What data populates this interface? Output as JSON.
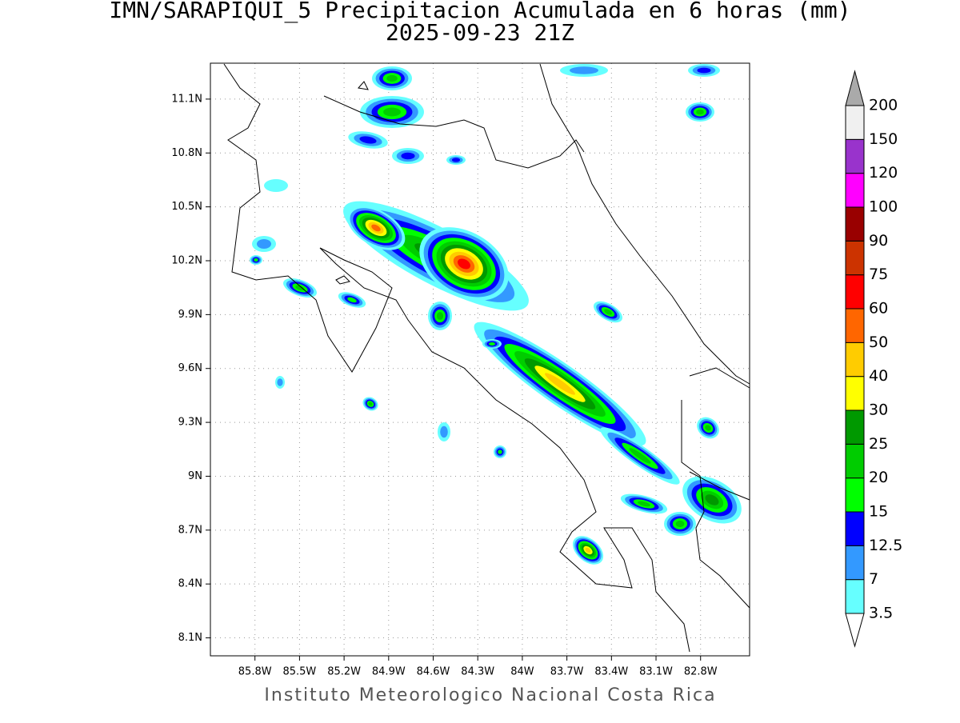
{
  "map": {
    "title": "IMN/SARAPIQUI_5 Precipitacion Acumulada en 6 horas (mm)",
    "subtitle": "2025-09-23 21Z",
    "xlim": [
      -86.1,
      -82.47
    ],
    "ylim": [
      8.0,
      11.3
    ],
    "xticks": [
      {
        "value": -85.8,
        "label": "85.8W"
      },
      {
        "value": -85.5,
        "label": "85.5W"
      },
      {
        "value": -85.2,
        "label": "85.2W"
      },
      {
        "value": -84.9,
        "label": "84.9W"
      },
      {
        "value": -84.6,
        "label": "84.6W"
      },
      {
        "value": -84.3,
        "label": "84.3W"
      },
      {
        "value": -84.0,
        "label": "84W"
      },
      {
        "value": -83.7,
        "label": "83.7W"
      },
      {
        "value": -83.4,
        "label": "83.4W"
      },
      {
        "value": -83.1,
        "label": "83.1W"
      },
      {
        "value": -82.8,
        "label": "82.8W"
      }
    ],
    "yticks": [
      {
        "value": 8.1,
        "label": "8.1N"
      },
      {
        "value": 8.4,
        "label": "8.4N"
      },
      {
        "value": 8.7,
        "label": "8.7N"
      },
      {
        "value": 9.0,
        "label": "9N"
      },
      {
        "value": 9.3,
        "label": "9.3N"
      },
      {
        "value": 9.6,
        "label": "9.6N"
      },
      {
        "value": 9.9,
        "label": "9.9N"
      },
      {
        "value": 10.2,
        "label": "10.2N"
      },
      {
        "value": 10.5,
        "label": "10.5N"
      },
      {
        "value": 10.8,
        "label": "10.8N"
      },
      {
        "value": 11.1,
        "label": "11.1N"
      }
    ],
    "colorbar": {
      "levels": [
        3.5,
        7,
        12.5,
        15,
        20,
        25,
        30,
        40,
        50,
        60,
        75,
        90,
        100,
        120,
        150,
        200
      ],
      "colors": [
        "#ffffff",
        "#66ffff",
        "#3399ff",
        "#0000ff",
        "#00ff00",
        "#00cc00",
        "#009900",
        "#ffff00",
        "#ffcc00",
        "#ff6600",
        "#ff0000",
        "#cc3300",
        "#990000",
        "#ff00ff",
        "#9933cc",
        "#f0f0f0",
        "#aaaaaa"
      ]
    },
    "footer": "Instituto Meteorologico Nacional Costa Rica"
  }
}
